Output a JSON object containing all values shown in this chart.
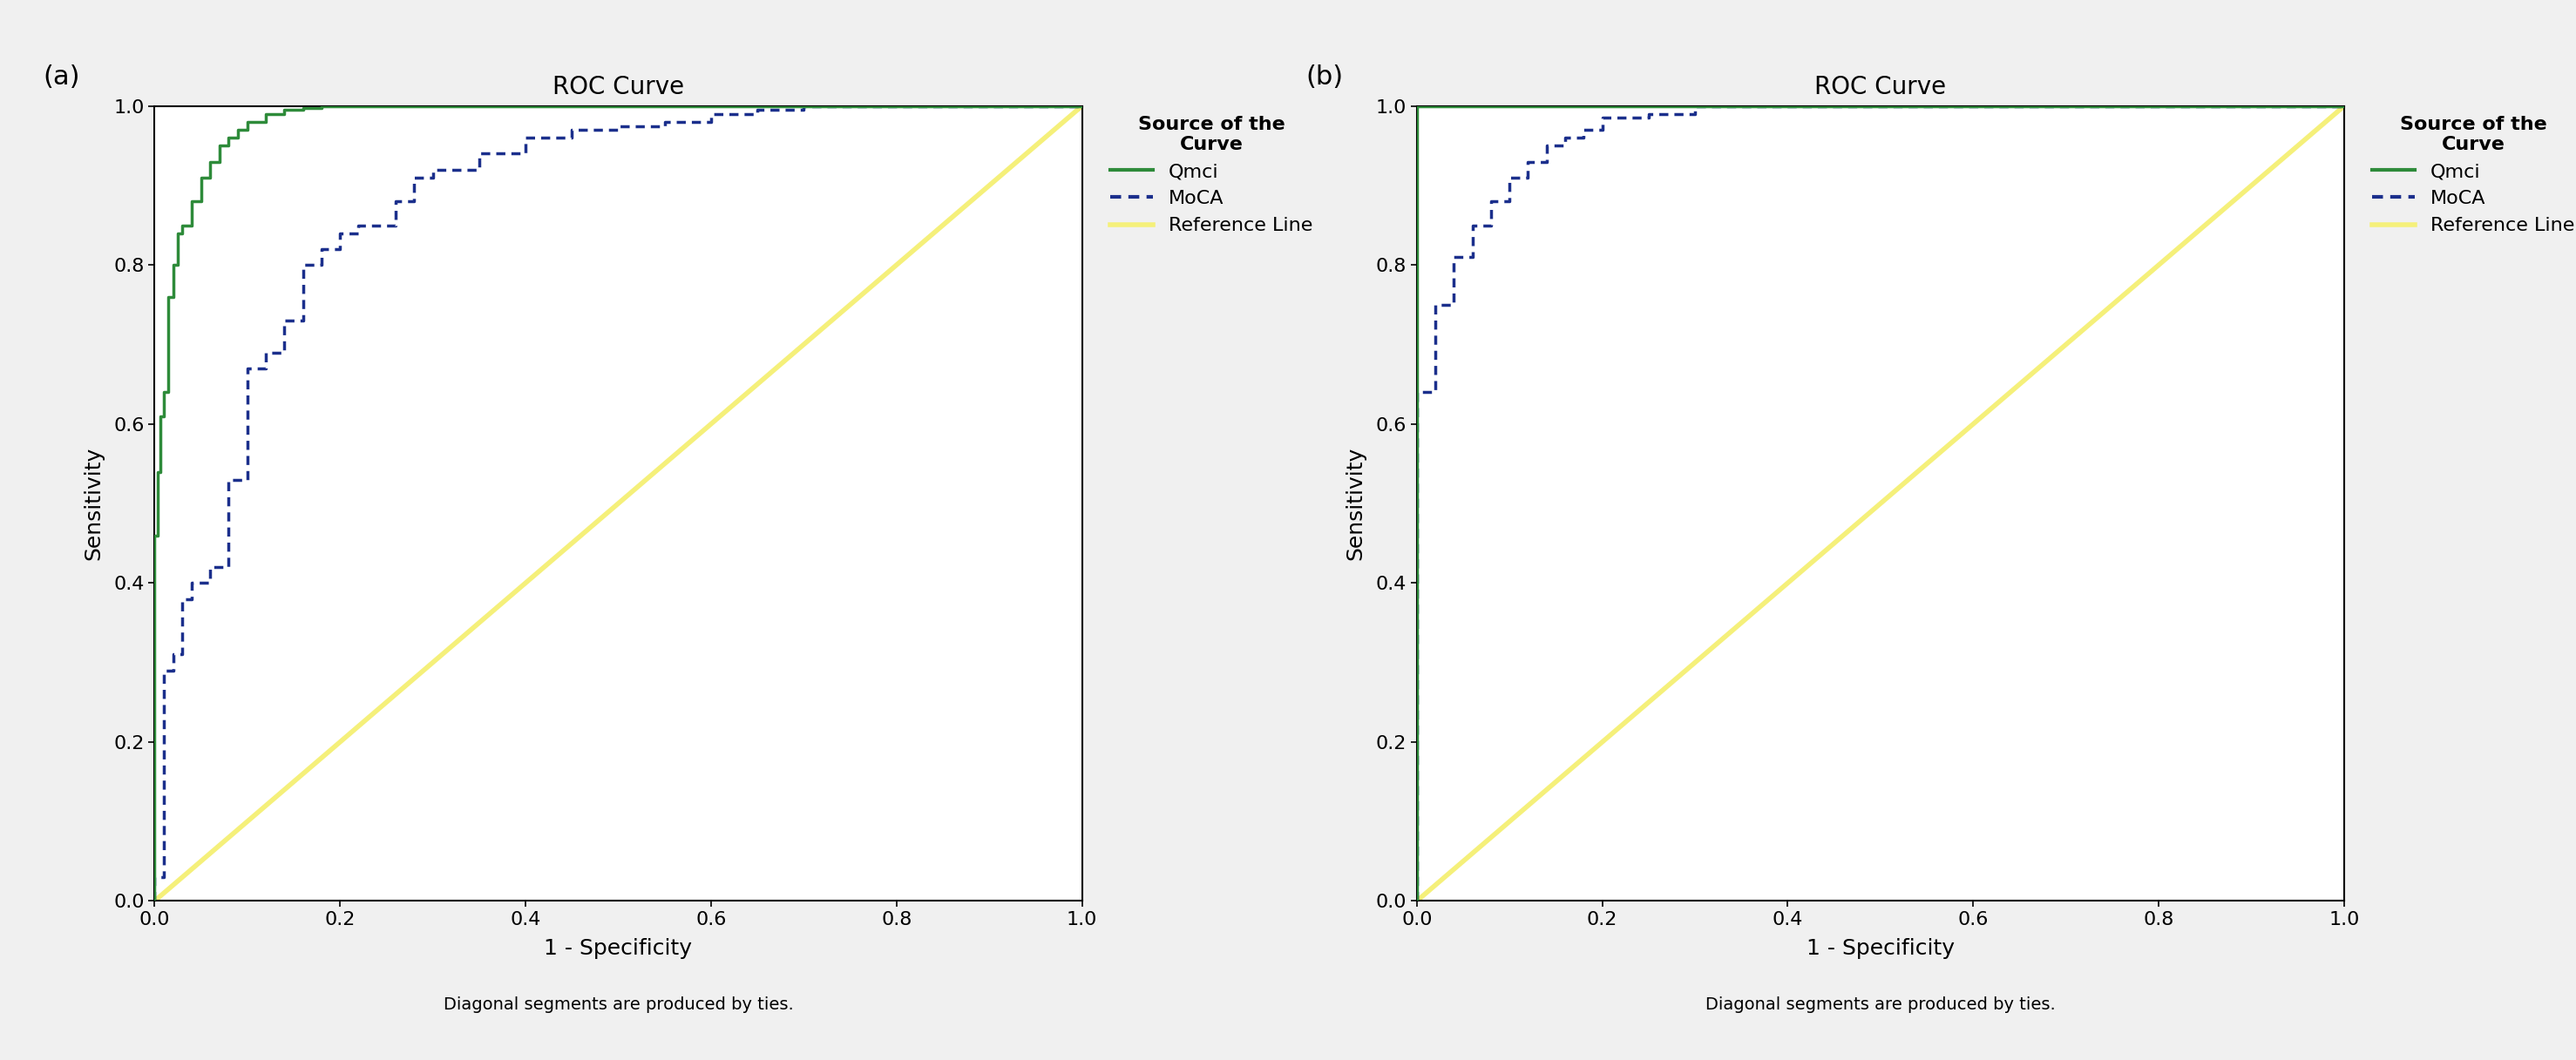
{
  "title": "ROC Curve",
  "xlabel": "1 - Specificity",
  "ylabel": "Sensitivity",
  "footnote": "Diagonal segments are produced by ties.",
  "legend_title": "Source of the\nCurve",
  "legend_entries": [
    "Qmci",
    "MoCA",
    "Reference Line"
  ],
  "qmci_color": "#2E8B3A",
  "moca_color": "#1B2F8C",
  "ref_color": "#F5F07A",
  "background_color": "#ffffff",
  "fig_background": "#f0f0f0",
  "panel_a_label": "(a)",
  "panel_b_label": "(b)",
  "xlim": [
    0.0,
    1.0
  ],
  "ylim": [
    0.0,
    1.0
  ],
  "xticks": [
    0.0,
    0.2,
    0.4,
    0.6,
    0.8,
    1.0
  ],
  "yticks": [
    0.0,
    0.2,
    0.4,
    0.6,
    0.8,
    1.0
  ],
  "panel_a_qmci_x": [
    0.0,
    0.0,
    0.003,
    0.003,
    0.006,
    0.006,
    0.01,
    0.01,
    0.015,
    0.015,
    0.02,
    0.02,
    0.025,
    0.025,
    0.03,
    0.03,
    0.04,
    0.04,
    0.05,
    0.05,
    0.06,
    0.06,
    0.07,
    0.07,
    0.08,
    0.08,
    0.09,
    0.09,
    0.1,
    0.1,
    0.12,
    0.12,
    0.14,
    0.14,
    0.16,
    0.16,
    0.18,
    0.18,
    0.2,
    0.2,
    0.25,
    0.25,
    1.0
  ],
  "panel_a_qmci_y": [
    0.0,
    0.46,
    0.46,
    0.54,
    0.54,
    0.61,
    0.61,
    0.64,
    0.64,
    0.76,
    0.76,
    0.8,
    0.8,
    0.84,
    0.84,
    0.85,
    0.85,
    0.88,
    0.88,
    0.91,
    0.91,
    0.93,
    0.93,
    0.95,
    0.95,
    0.96,
    0.96,
    0.97,
    0.97,
    0.98,
    0.98,
    0.99,
    0.99,
    0.995,
    0.995,
    0.998,
    0.998,
    1.0,
    1.0,
    1.0,
    1.0,
    1.0,
    1.0
  ],
  "panel_a_moca_x": [
    0.0,
    0.0,
    0.01,
    0.01,
    0.02,
    0.02,
    0.03,
    0.03,
    0.04,
    0.04,
    0.06,
    0.06,
    0.08,
    0.08,
    0.1,
    0.1,
    0.12,
    0.12,
    0.14,
    0.14,
    0.16,
    0.16,
    0.18,
    0.18,
    0.2,
    0.2,
    0.22,
    0.22,
    0.24,
    0.24,
    0.26,
    0.26,
    0.28,
    0.28,
    0.3,
    0.3,
    0.35,
    0.35,
    0.4,
    0.4,
    0.45,
    0.45,
    0.5,
    0.5,
    0.55,
    0.55,
    0.6,
    0.6,
    0.65,
    0.65,
    0.7,
    0.7,
    1.0
  ],
  "panel_a_moca_y": [
    0.0,
    0.03,
    0.03,
    0.29,
    0.29,
    0.31,
    0.31,
    0.38,
    0.38,
    0.4,
    0.4,
    0.42,
    0.42,
    0.53,
    0.53,
    0.67,
    0.67,
    0.69,
    0.69,
    0.73,
    0.73,
    0.8,
    0.8,
    0.82,
    0.82,
    0.84,
    0.84,
    0.85,
    0.85,
    0.85,
    0.85,
    0.88,
    0.88,
    0.91,
    0.91,
    0.92,
    0.92,
    0.94,
    0.94,
    0.96,
    0.96,
    0.97,
    0.97,
    0.975,
    0.975,
    0.98,
    0.98,
    0.99,
    0.99,
    0.995,
    0.995,
    1.0,
    1.0
  ],
  "panel_b_qmci_x": [
    0.0,
    0.0,
    0.005,
    0.005,
    0.01,
    0.01,
    0.02,
    0.02,
    1.0
  ],
  "panel_b_qmci_y": [
    0.0,
    1.0,
    1.0,
    1.0,
    1.0,
    1.0,
    1.0,
    1.0,
    1.0
  ],
  "panel_b_moca_x": [
    0.0,
    0.0,
    0.02,
    0.02,
    0.04,
    0.04,
    0.06,
    0.06,
    0.08,
    0.08,
    0.1,
    0.1,
    0.12,
    0.12,
    0.14,
    0.14,
    0.16,
    0.16,
    0.18,
    0.18,
    0.2,
    0.2,
    0.25,
    0.25,
    0.3,
    0.3,
    1.0
  ],
  "panel_b_moca_y": [
    0.0,
    0.64,
    0.64,
    0.75,
    0.75,
    0.81,
    0.81,
    0.85,
    0.85,
    0.88,
    0.88,
    0.91,
    0.91,
    0.93,
    0.93,
    0.95,
    0.95,
    0.96,
    0.96,
    0.97,
    0.97,
    0.985,
    0.985,
    0.99,
    0.99,
    1.0,
    1.0
  ]
}
